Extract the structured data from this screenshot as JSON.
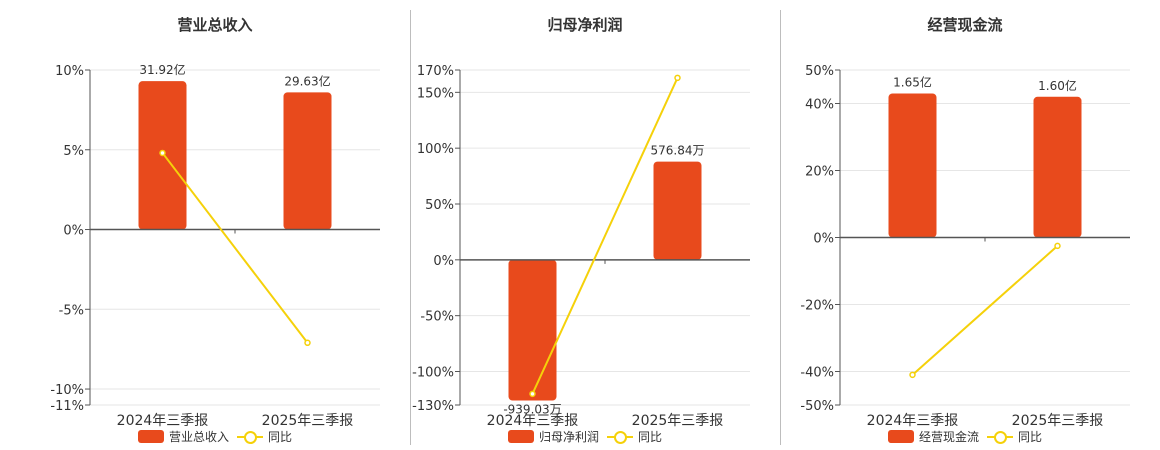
{
  "colors": {
    "bar": "#e84a1c",
    "line": "#f5d10a",
    "axis": "#555555",
    "grid": "#e6e6e6"
  },
  "legend_common": {
    "line_label": "同比"
  },
  "chart_data": [
    {
      "type": "bar",
      "title": "营业总收入",
      "categories": [
        "2024年三季报",
        "2025年三季报"
      ],
      "series": [
        {
          "name": "营业总收入",
          "kind": "bar",
          "values": [
            9.3,
            8.6
          ],
          "labels": [
            "31.92亿",
            "29.63亿"
          ]
        },
        {
          "name": "同比",
          "kind": "line",
          "values": [
            4.8,
            -7.1
          ]
        }
      ],
      "yticks": [
        10,
        5,
        0,
        -5,
        -10,
        -11
      ],
      "ytick_labels": [
        "10%",
        "5%",
        "0%",
        "-5%",
        "-10%",
        "-11%"
      ],
      "ylim": [
        -11,
        10
      ]
    },
    {
      "type": "bar",
      "title": "归母净利润",
      "categories": [
        "2024年三季报",
        "2025年三季报"
      ],
      "series": [
        {
          "name": "归母净利润",
          "kind": "bar",
          "values": [
            -126,
            88
          ],
          "labels": [
            "-939.03万",
            "576.84万"
          ]
        },
        {
          "name": "同比",
          "kind": "line",
          "values": [
            -120,
            163
          ]
        }
      ],
      "yticks": [
        170,
        150,
        100,
        50,
        0,
        -50,
        -100,
        -130
      ],
      "ytick_labels": [
        "170%",
        "150%",
        "100%",
        "50%",
        "0%",
        "-50%",
        "-100%",
        "-130%"
      ],
      "ylim": [
        -130,
        170
      ]
    },
    {
      "type": "bar",
      "title": "经营现金流",
      "categories": [
        "2024年三季报",
        "2025年三季报"
      ],
      "series": [
        {
          "name": "经营现金流",
          "kind": "bar",
          "values": [
            43,
            42
          ],
          "labels": [
            "1.65亿",
            "1.60亿"
          ]
        },
        {
          "name": "同比",
          "kind": "line",
          "values": [
            -41,
            -2.5
          ]
        }
      ],
      "yticks": [
        50,
        40,
        20,
        0,
        -20,
        -40,
        -50
      ],
      "ytick_labels": [
        "50%",
        "40%",
        "20%",
        "0%",
        "-20%",
        "-40%",
        "-50%"
      ],
      "ylim": [
        -50,
        50
      ]
    }
  ]
}
